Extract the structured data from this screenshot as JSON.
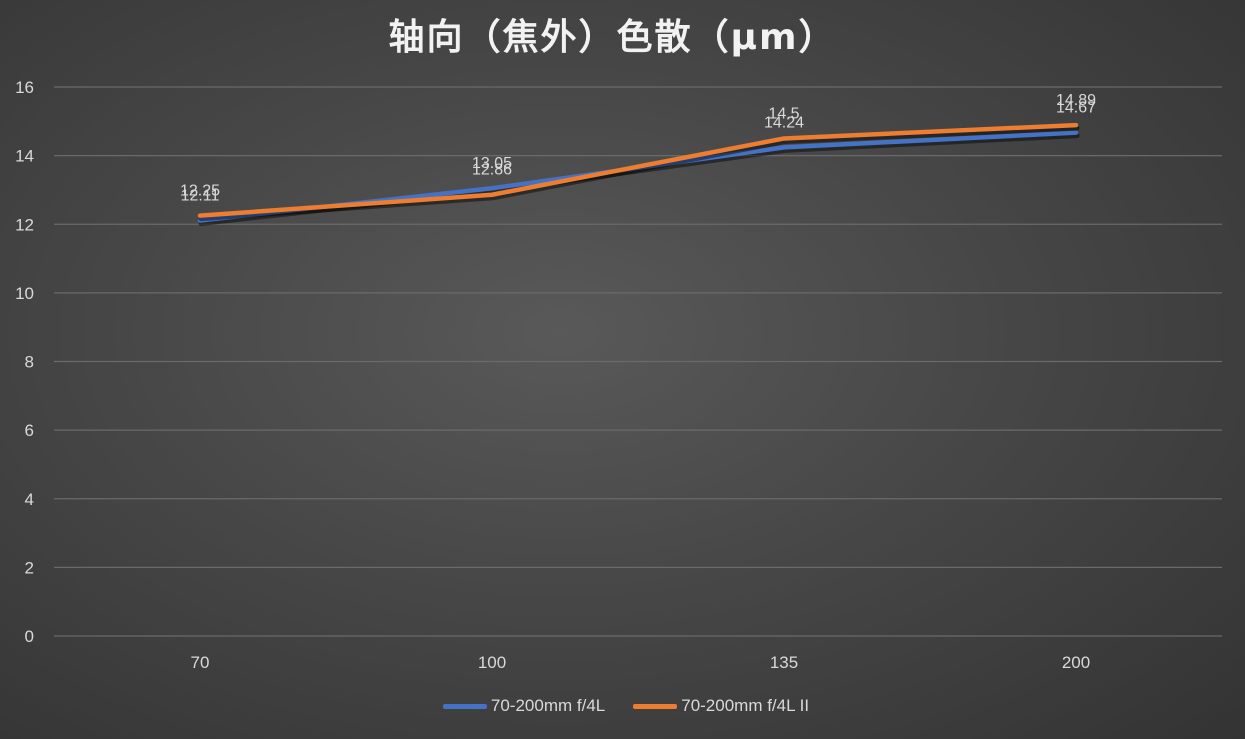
{
  "chart_data": {
    "type": "line",
    "title": "轴向（焦外）色散（μm）",
    "xlabel": "",
    "ylabel": "",
    "categories": [
      "70",
      "100",
      "135",
      "200"
    ],
    "ylim": [
      0,
      16
    ],
    "yticks": [
      0,
      2,
      4,
      6,
      8,
      10,
      12,
      14,
      16
    ],
    "grid": true,
    "legend_position": "bottom",
    "series": [
      {
        "name": "70-200mm f/4L",
        "color": "#4472c4",
        "values": [
          12.11,
          13.05,
          14.24,
          14.67
        ],
        "labels": [
          "12.11",
          "13.05",
          "14.24",
          "14.67"
        ]
      },
      {
        "name": "70-200mm f/4L II",
        "color": "#ed7d31",
        "values": [
          12.25,
          12.86,
          14.5,
          14.89
        ],
        "labels": [
          "12.25",
          "12.86",
          "14.5",
          "14.89"
        ]
      }
    ]
  }
}
